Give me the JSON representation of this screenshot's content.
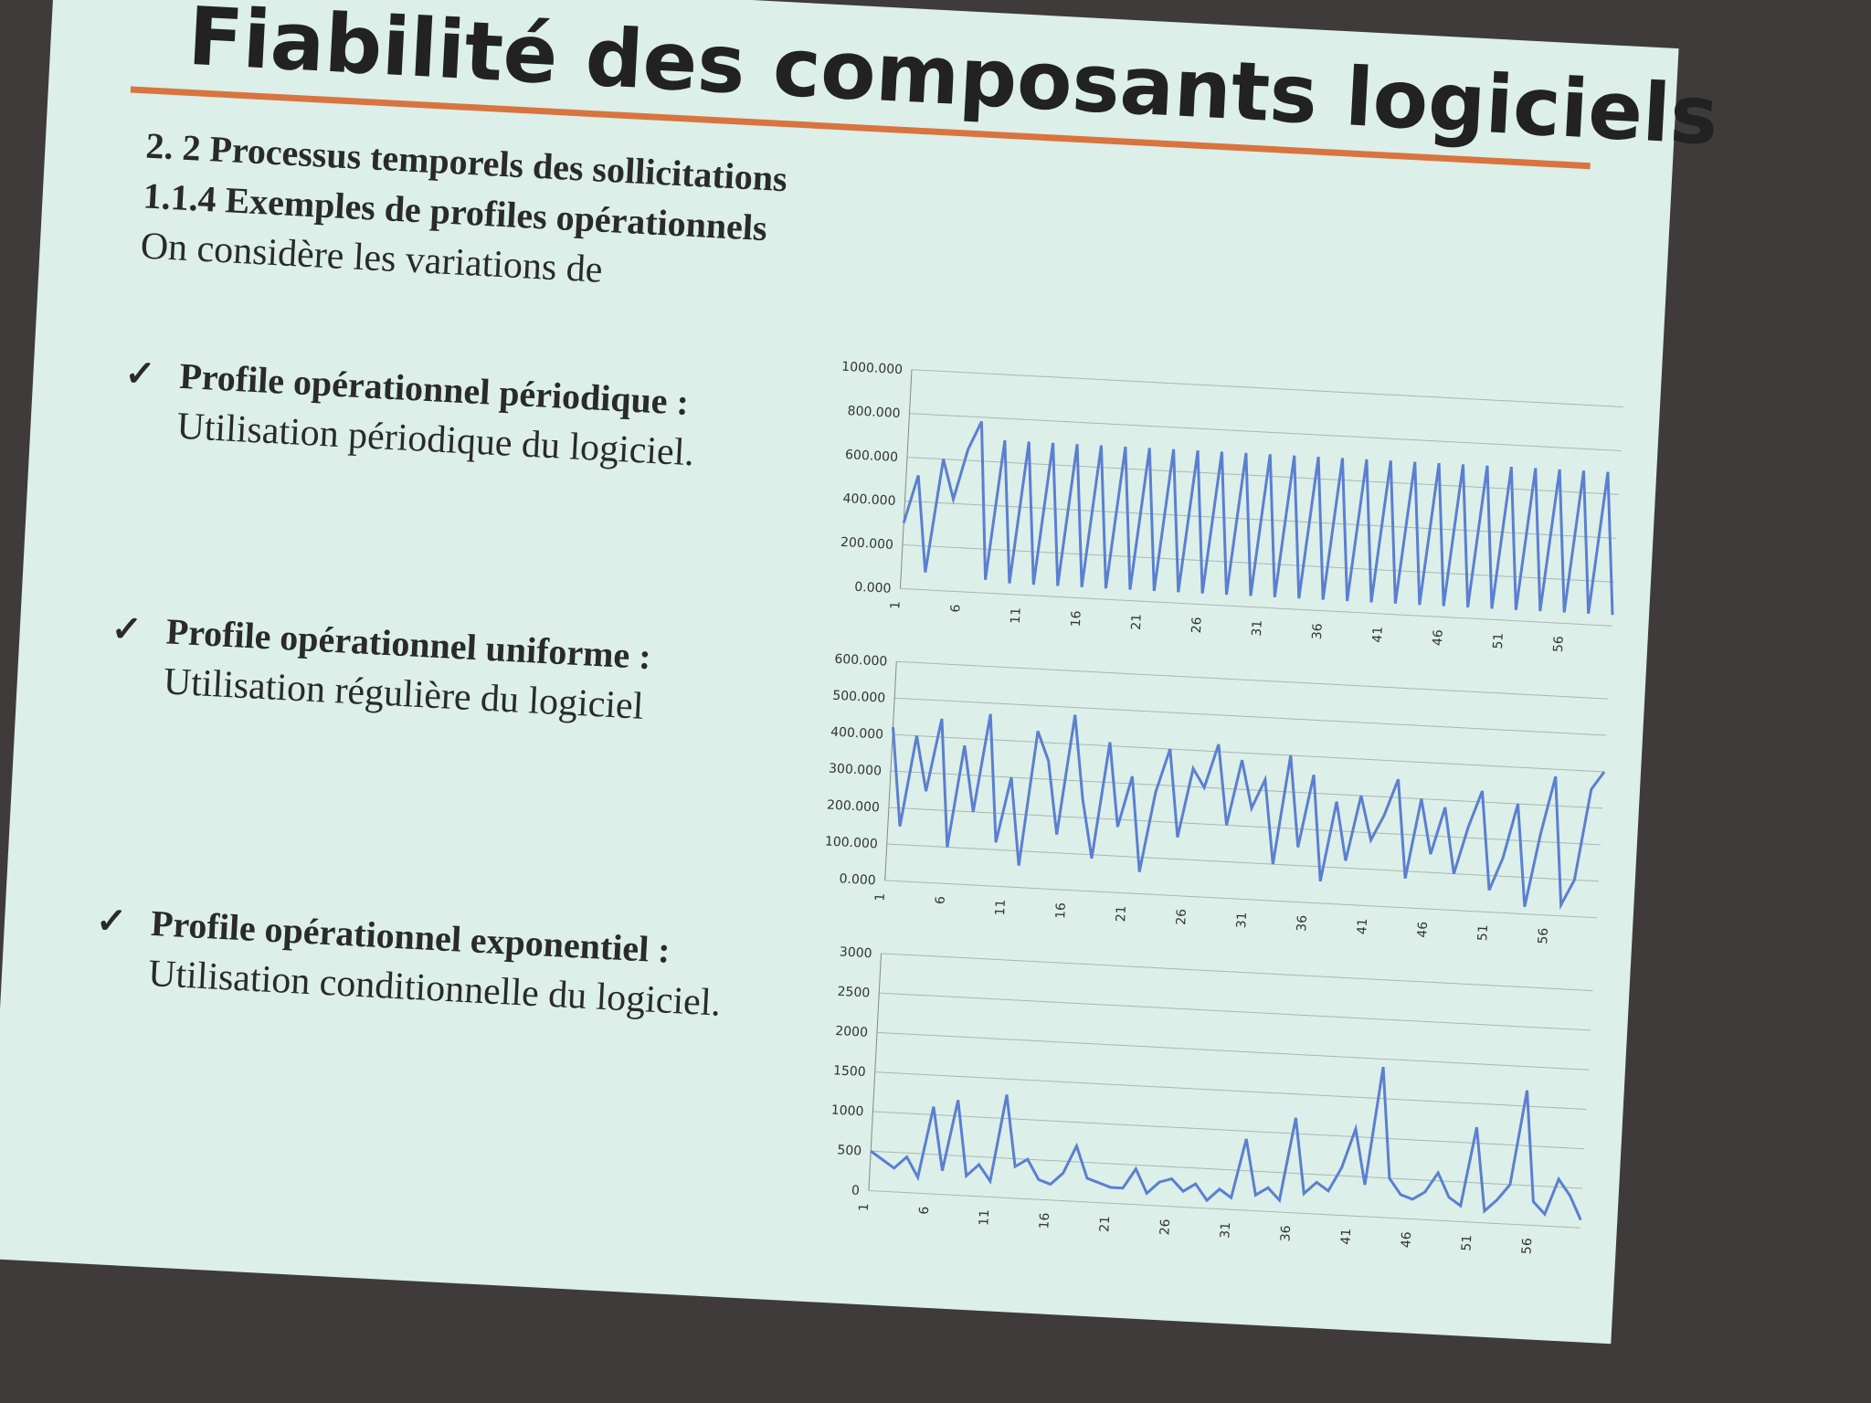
{
  "slide": {
    "title": "Fiabilité des composants logiciels",
    "section": "2. 2 Processus temporels des sollicitations",
    "subsection": "1.1.4 Exemples de profiles opérationnels",
    "intro": "On considère les variations de",
    "items": [
      {
        "heading": "Profile opérationnel périodique :",
        "text": "Utilisation périodique du logiciel."
      },
      {
        "heading": "Profile opérationnel uniforme :",
        "text": "Utilisation régulière du logiciel"
      },
      {
        "heading": "Profile opérationnel exponentiel :",
        "text": "Utilisation conditionnelle du logiciel."
      }
    ]
  },
  "chart_data": [
    {
      "type": "line",
      "color": "#5b7fd0",
      "grid": true,
      "x": [
        1,
        2,
        3,
        4,
        5,
        6,
        7,
        8,
        9,
        10,
        11,
        12,
        13,
        14,
        15,
        16,
        17,
        18,
        19,
        20,
        21,
        22,
        23,
        24,
        25,
        26,
        27,
        28,
        29,
        30,
        31,
        32,
        33,
        34,
        35,
        36,
        37,
        38,
        39,
        40,
        41,
        42,
        43,
        44,
        45,
        46,
        47,
        48,
        49,
        50,
        51,
        52,
        53,
        54,
        55,
        56,
        57,
        58,
        59,
        60
      ],
      "values": [
        300,
        520,
        80,
        600,
        420,
        650,
        780,
        60,
        700,
        50,
        700,
        50,
        700,
        50,
        700,
        50,
        700,
        50,
        700,
        50,
        700,
        50,
        700,
        50,
        700,
        50,
        700,
        50,
        700,
        50,
        700,
        50,
        700,
        50,
        700,
        50,
        700,
        50,
        700,
        50,
        700,
        50,
        700,
        50,
        700,
        50,
        700,
        50,
        700,
        50,
        700,
        50,
        700,
        50,
        700,
        50,
        700,
        50,
        700,
        50
      ],
      "xlim": [
        1,
        60
      ],
      "xticks": [
        1,
        6,
        11,
        16,
        21,
        26,
        31,
        36,
        41,
        46,
        51,
        56
      ],
      "ylim": [
        0,
        1000
      ],
      "yticks": [
        {
          "value": 0,
          "label": "0.000"
        },
        {
          "value": 200,
          "label": "200.000"
        },
        {
          "value": 400,
          "label": "400.000"
        },
        {
          "value": 600,
          "label": "600.000"
        },
        {
          "value": 800,
          "label": "800.000"
        },
        {
          "value": 1000,
          "label": "1000.000"
        }
      ]
    },
    {
      "type": "line",
      "color": "#5b7fd0",
      "grid": true,
      "x": [
        1,
        2,
        3,
        4,
        5,
        6,
        7,
        8,
        9,
        10,
        11,
        12,
        13,
        14,
        15,
        16,
        17,
        18,
        19,
        20,
        21,
        22,
        23,
        24,
        25,
        26,
        27,
        28,
        29,
        30,
        31,
        32,
        33,
        34,
        35,
        36,
        37,
        38,
        39,
        40,
        41,
        42,
        43,
        44,
        45,
        46,
        47,
        48,
        49,
        50,
        51,
        52,
        53,
        54,
        55,
        56,
        57,
        58,
        59,
        60
      ],
      "values": [
        420,
        150,
        400,
        250,
        450,
        100,
        380,
        200,
        470,
        120,
        300,
        60,
        430,
        350,
        150,
        480,
        250,
        90,
        410,
        180,
        320,
        60,
        280,
        400,
        160,
        350,
        300,
        420,
        200,
        380,
        250,
        330,
        100,
        400,
        150,
        350,
        60,
        280,
        120,
        300,
        180,
        250,
        350,
        80,
        300,
        150,
        280,
        100,
        230,
        330,
        60,
        150,
        300,
        20,
        220,
        380,
        30,
        100,
        350,
        400
      ],
      "xlim": [
        1,
        60
      ],
      "xticks": [
        1,
        6,
        11,
        16,
        21,
        26,
        31,
        36,
        41,
        46,
        51,
        56
      ],
      "ylim": [
        0,
        600
      ],
      "yticks": [
        {
          "value": 0,
          "label": "0.000"
        },
        {
          "value": 100,
          "label": "100.000"
        },
        {
          "value": 200,
          "label": "200.000"
        },
        {
          "value": 300,
          "label": "300.000"
        },
        {
          "value": 400,
          "label": "400.000"
        },
        {
          "value": 500,
          "label": "500.000"
        },
        {
          "value": 600,
          "label": "600.000"
        }
      ]
    },
    {
      "type": "line",
      "color": "#5b7fd0",
      "grid": true,
      "x": [
        1,
        2,
        3,
        4,
        5,
        6,
        7,
        8,
        9,
        10,
        11,
        12,
        13,
        14,
        15,
        16,
        17,
        18,
        19,
        20,
        21,
        22,
        23,
        24,
        25,
        26,
        27,
        28,
        29,
        30,
        31,
        32,
        33,
        34,
        35,
        36,
        37,
        38,
        39,
        40,
        41,
        42,
        43,
        44,
        45,
        46,
        47,
        48,
        49,
        50,
        51,
        52,
        53,
        54,
        55,
        56,
        57,
        58,
        59,
        60
      ],
      "values": [
        500,
        400,
        300,
        450,
        200,
        1100,
        300,
        1200,
        250,
        400,
        200,
        1300,
        400,
        500,
        250,
        200,
        350,
        700,
        300,
        250,
        200,
        200,
        450,
        150,
        300,
        350,
        200,
        300,
        100,
        250,
        150,
        900,
        200,
        300,
        150,
        1200,
        250,
        400,
        300,
        600,
        1100,
        400,
        1900,
        500,
        300,
        250,
        350,
        600,
        300,
        200,
        1200,
        150,
        300,
        500,
        1700,
        300,
        150,
        600,
        400,
        100
      ],
      "xlim": [
        1,
        60
      ],
      "xticks": [
        1,
        6,
        11,
        16,
        21,
        26,
        31,
        36,
        41,
        46,
        51,
        56
      ],
      "ylim": [
        0,
        3000
      ],
      "yticks": [
        0,
        500,
        1000,
        1500,
        2000,
        2500,
        3000
      ]
    }
  ]
}
